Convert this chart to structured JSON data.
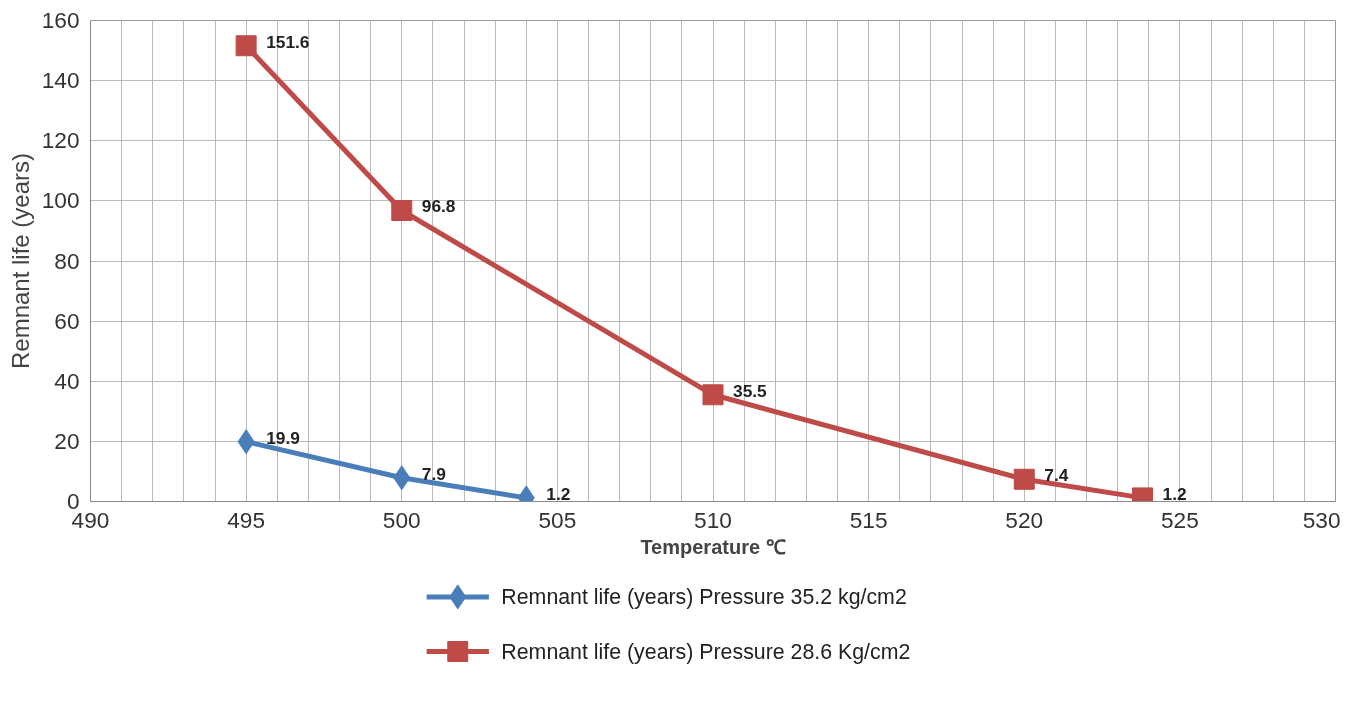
{
  "chart_data": {
    "type": "line",
    "xlabel": "Temperature ℃",
    "ylabel": "Remnant life (years)",
    "xlim": [
      490,
      530
    ],
    "xticks": [
      490,
      495,
      500,
      505,
      510,
      515,
      520,
      525,
      530
    ],
    "ylim": [
      0,
      160
    ],
    "yticks": [
      0,
      20,
      40,
      60,
      80,
      100,
      120,
      140,
      160
    ],
    "grid": true,
    "legend": "bottom",
    "data_labels": true,
    "series": [
      {
        "name": "Remnant life (years)  Pressure 35.2 kg/cm2",
        "color": "#4a7ebb",
        "marker": "diamond",
        "x": [
          495,
          500,
          504
        ],
        "values": [
          19.9,
          7.9,
          1.2
        ]
      },
      {
        "name": "Remnant life (years)  Pressure 28.6 Kg/cm2",
        "color": "#be4b48",
        "marker": "square",
        "x": [
          495,
          500,
          510,
          520,
          523.8
        ],
        "values": [
          151.6,
          96.8,
          35.5,
          7.4,
          1.2
        ]
      }
    ]
  }
}
